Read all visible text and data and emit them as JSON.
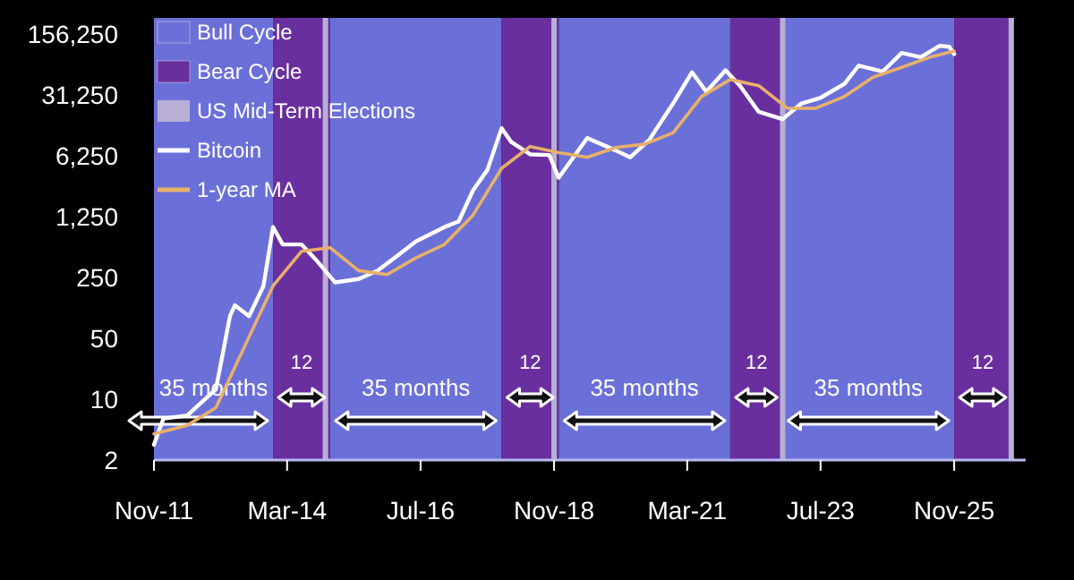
{
  "chart_data": {
    "type": "line",
    "log": true,
    "legend": "top left",
    "grid": false,
    "xlim": [
      "2011-11",
      "2027-02"
    ],
    "xticks": [
      {
        "value": "2011-11",
        "label": "Nov-11"
      },
      {
        "value": "2014-03",
        "label": "Mar-14"
      },
      {
        "value": "2016-07",
        "label": "Jul-16"
      },
      {
        "value": "2018-11",
        "label": "Nov-18"
      },
      {
        "value": "2021-03",
        "label": "Mar-21"
      },
      {
        "value": "2023-07",
        "label": "Jul-23"
      },
      {
        "value": "2025-11",
        "label": "Nov-25"
      }
    ],
    "ylim": [
      2,
      240000
    ],
    "yticks": [
      {
        "value": 2,
        "label": "2"
      },
      {
        "value": 10,
        "label": "10"
      },
      {
        "value": 50,
        "label": "50"
      },
      {
        "value": 250,
        "label": "250"
      },
      {
        "value": 1250,
        "label": "1,250"
      },
      {
        "value": 6250,
        "label": "6,250"
      },
      {
        "value": 31250,
        "label": "31,250"
      },
      {
        "value": 156250,
        "label": "156,250"
      }
    ],
    "bands": [
      {
        "axis": "x",
        "from": "2011-11",
        "to": "2013-12",
        "label": "Bull Cycle",
        "color": "#6b70d8"
      },
      {
        "axis": "x",
        "from": "2013-12",
        "to": "2014-12",
        "label": "Bear Cycle",
        "color": "#6a2f9e"
      },
      {
        "axis": "x",
        "from": "2014-12",
        "to": "2017-12",
        "color": "#6b70d8"
      },
      {
        "axis": "x",
        "from": "2017-12",
        "to": "2018-12",
        "color": "#6a2f9e"
      },
      {
        "axis": "x",
        "from": "2018-12",
        "to": "2021-12",
        "color": "#6b70d8"
      },
      {
        "axis": "x",
        "from": "2021-12",
        "to": "2022-11",
        "color": "#6a2f9e"
      },
      {
        "axis": "x",
        "from": "2022-11",
        "to": "2025-11",
        "color": "#6b70d8"
      },
      {
        "axis": "x",
        "from": "2025-11",
        "to": "2026-11",
        "color": "#6a2f9e"
      }
    ],
    "ref_lines": [
      {
        "axis": "x",
        "value": "2014-11",
        "label": "US Mid-Term Elections",
        "color": "#b9aed6"
      },
      {
        "axis": "x",
        "value": "2018-11",
        "color": "#b9aed6"
      },
      {
        "axis": "x",
        "value": "2022-11",
        "color": "#b9aed6"
      },
      {
        "axis": "x",
        "value": "2026-11",
        "color": "#b9aed6"
      }
    ],
    "annotations": [
      "35 months",
      "12",
      "35 months",
      "12",
      "35 months",
      "12",
      "35 months",
      "12"
    ],
    "series": [
      {
        "name": "Bitcoin",
        "color": "#ffffff",
        "x": [
          "2011-11",
          "2012-01",
          "2012-06",
          "2012-12",
          "2013-03",
          "2013-04",
          "2013-07",
          "2013-10",
          "2013-12",
          "2014-02",
          "2014-06",
          "2014-09",
          "2015-01",
          "2015-06",
          "2015-10",
          "2016-01",
          "2016-06",
          "2016-12",
          "2017-03",
          "2017-06",
          "2017-09",
          "2017-12",
          "2018-02",
          "2018-06",
          "2018-10",
          "2018-12",
          "2019-06",
          "2019-12",
          "2020-03",
          "2020-07",
          "2020-12",
          "2021-04",
          "2021-07",
          "2021-11",
          "2022-02",
          "2022-06",
          "2022-11",
          "2023-03",
          "2023-07",
          "2023-12",
          "2024-03",
          "2024-08",
          "2024-12",
          "2025-04",
          "2025-08",
          "2025-10",
          "2025-11"
        ],
        "values": [
          3,
          6,
          6.5,
          13,
          90,
          120,
          90,
          200,
          950,
          600,
          600,
          400,
          220,
          240,
          300,
          400,
          650,
          950,
          1100,
          2500,
          4300,
          13000,
          9000,
          6500,
          6400,
          3500,
          10000,
          7200,
          6000,
          9500,
          25000,
          57000,
          34000,
          60000,
          40000,
          20000,
          16500,
          25000,
          29000,
          42000,
          68000,
          58000,
          95000,
          85000,
          115000,
          112000,
          92000
        ]
      },
      {
        "name": "1-year MA",
        "color": "#e8b06a",
        "x": [
          "2011-11",
          "2012-06",
          "2012-12",
          "2013-06",
          "2013-12",
          "2014-06",
          "2014-12",
          "2015-06",
          "2015-12",
          "2016-06",
          "2016-12",
          "2017-06",
          "2017-12",
          "2018-06",
          "2018-12",
          "2019-06",
          "2019-12",
          "2020-06",
          "2020-12",
          "2021-06",
          "2021-12",
          "2022-06",
          "2022-12",
          "2023-06",
          "2023-12",
          "2024-06",
          "2024-12",
          "2025-06",
          "2025-11"
        ],
        "values": [
          4,
          5,
          8,
          40,
          200,
          500,
          550,
          300,
          270,
          420,
          600,
          1300,
          4500,
          8000,
          6800,
          6000,
          7800,
          8500,
          11500,
          30000,
          47000,
          40000,
          22000,
          22000,
          30000,
          50000,
          65000,
          85000,
          100000
        ]
      }
    ]
  }
}
